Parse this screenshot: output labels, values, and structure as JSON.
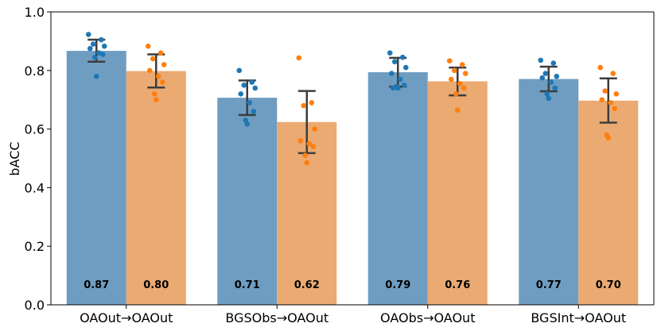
{
  "chart_data": {
    "type": "bar",
    "ylabel": "bACC",
    "ylim": [
      0,
      1.0
    ],
    "yticks": [
      "0.0",
      "0.2",
      "0.4",
      "0.6",
      "0.8",
      "1.0"
    ],
    "categories": [
      "OAOut→OAOut",
      "BGSObs→OAOut",
      "OAObs→OAOut",
      "BGSInt→OAOut"
    ],
    "grid": false,
    "legend": "none",
    "series": [
      {
        "color": "#1f77b4",
        "bar_color": "#6f9dc2",
        "values": [
          0.867,
          0.707,
          0.794,
          0.771
        ],
        "labels": [
          "0.87",
          "0.71",
          "0.79",
          "0.77"
        ],
        "error_low": [
          0.83,
          0.648,
          0.745,
          0.729
        ],
        "error_high": [
          0.905,
          0.766,
          0.843,
          0.813
        ],
        "points": [
          [
            0.923,
            0.905,
            0.89,
            0.883,
            0.875,
            0.86,
            0.855,
            0.845,
            0.78
          ],
          [
            0.8,
            0.76,
            0.75,
            0.74,
            0.72,
            0.69,
            0.66,
            0.63,
            0.617
          ],
          [
            0.86,
            0.845,
            0.83,
            0.81,
            0.79,
            0.77,
            0.75,
            0.745,
            0.74,
            0.74
          ],
          [
            0.835,
            0.825,
            0.79,
            0.78,
            0.775,
            0.76,
            0.74,
            0.72,
            0.705
          ]
        ]
      },
      {
        "color": "#ff7f0e",
        "bar_color": "#eaaa72",
        "values": [
          0.798,
          0.624,
          0.763,
          0.697
        ],
        "labels": [
          "0.80",
          "0.62",
          "0.76",
          "0.70"
        ],
        "error_low": [
          0.742,
          0.518,
          0.715,
          0.622
        ],
        "error_high": [
          0.855,
          0.73,
          0.81,
          0.773
        ],
        "points": [
          [
            0.883,
            0.86,
            0.84,
            0.82,
            0.8,
            0.78,
            0.76,
            0.72,
            0.7
          ],
          [
            0.843,
            0.69,
            0.68,
            0.6,
            0.56,
            0.55,
            0.54,
            0.51,
            0.485
          ],
          [
            0.833,
            0.82,
            0.8,
            0.79,
            0.77,
            0.755,
            0.74,
            0.72,
            0.665
          ],
          [
            0.81,
            0.79,
            0.73,
            0.72,
            0.7,
            0.69,
            0.67,
            0.58,
            0.57
          ]
        ]
      }
    ]
  }
}
